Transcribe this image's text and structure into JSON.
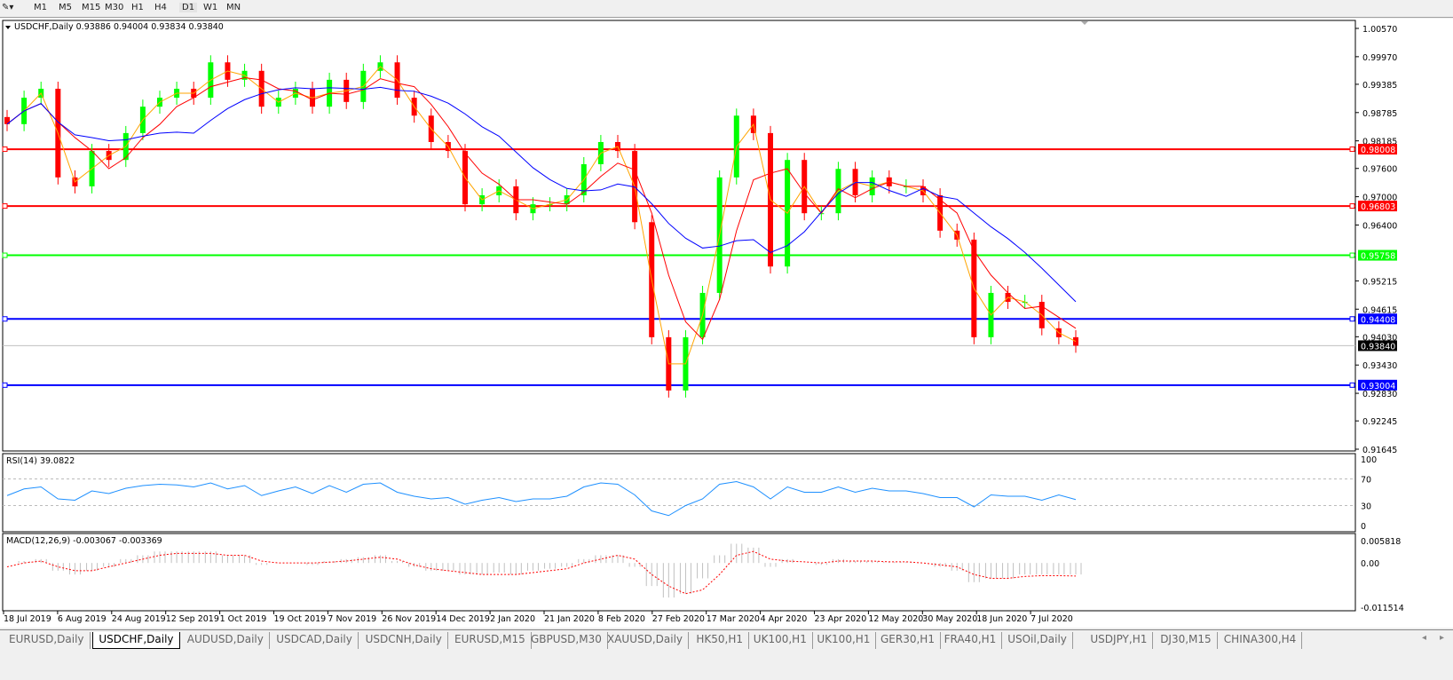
{
  "toolbar": {
    "timeframes": [
      "M1",
      "M5",
      "M15",
      "M30",
      "H1",
      "H4",
      "D1",
      "W1",
      "MN"
    ],
    "active": "D1"
  },
  "header": {
    "symbol": "USDCHF,Daily",
    "ohlc": "0.93886 0.94004 0.93834 0.93840"
  },
  "colors": {
    "bull": "#00ff00",
    "bear": "#ff0000",
    "ma_fast": "#ffa500",
    "ma_mid": "#ff0000",
    "ma_slow": "#0000ff",
    "rsi": "#1e90ff"
  },
  "chart_data": [
    {
      "type": "candlestick",
      "title": "USDCHF,Daily",
      "price_ticks": [
        "1.00570",
        "0.99970",
        "0.99385",
        "0.98785",
        "0.98185",
        "0.97600",
        "0.97000",
        "0.96400",
        "0.95215",
        "0.94615",
        "0.94030",
        "0.93430",
        "0.92830",
        "0.92245",
        "0.91645"
      ],
      "ylim": [
        0.91645,
        1.0057
      ],
      "x_ticks": [
        "18 Jul 2019",
        "6 Aug 2019",
        "24 Aug 2019",
        "12 Sep 2019",
        "1 Oct 2019",
        "19 Oct 2019",
        "7 Nov 2019",
        "26 Nov 2019",
        "14 Dec 2019",
        "2 Jan 2020",
        "21 Jan 2020",
        "8 Feb 2020",
        "27 Feb 2020",
        "17 Mar 2020",
        "4 Apr 2020",
        "23 Apr 2020",
        "12 May 2020",
        "30 May 2020",
        "18 Jun 2020",
        "7 Jul 2020"
      ],
      "closes": [
        0.9854,
        0.991,
        0.9929,
        0.9741,
        0.9722,
        0.9797,
        0.9778,
        0.9835,
        0.9891,
        0.991,
        0.9929,
        0.991,
        0.9985,
        0.9948,
        0.9967,
        0.9891,
        0.991,
        0.9929,
        0.9891,
        0.9948,
        0.9901,
        0.9967,
        0.9985,
        0.991,
        0.9872,
        0.9816,
        0.9797,
        0.9684,
        0.9703,
        0.9722,
        0.9665,
        0.9684,
        0.9684,
        0.9703,
        0.9769,
        0.9816,
        0.9797,
        0.9646,
        0.9402,
        0.9289,
        0.9402,
        0.9496,
        0.9741,
        0.9872,
        0.9835,
        0.9552,
        0.9778,
        0.9665,
        0.9665,
        0.9759,
        0.9703,
        0.9741,
        0.9722,
        0.9722,
        0.9703,
        0.9628,
        0.9609,
        0.9402,
        0.9496,
        0.9477,
        0.9477,
        0.9421,
        0.9402,
        0.9384
      ],
      "horizontal_lines": [
        {
          "price": "0.98008",
          "color": "#ff0000"
        },
        {
          "price": "0.96803",
          "color": "#ff0000"
        },
        {
          "price": "0.95758",
          "color": "#00ff00"
        },
        {
          "price": "0.94408",
          "color": "#0000ff"
        },
        {
          "price": "0.93004",
          "color": "#0000ff"
        }
      ],
      "current_price": "0.93840"
    },
    {
      "type": "line",
      "title": "RSI(14) 39.0822",
      "ylim": [
        0,
        100
      ],
      "y_ticks": [
        "100",
        "70",
        "30",
        "0"
      ],
      "levels": [
        70,
        30
      ],
      "values": [
        45,
        55,
        58,
        40,
        38,
        52,
        48,
        56,
        60,
        62,
        61,
        58,
        64,
        55,
        60,
        45,
        52,
        58,
        48,
        60,
        50,
        62,
        64,
        50,
        44,
        40,
        42,
        32,
        38,
        42,
        36,
        40,
        40,
        44,
        58,
        64,
        62,
        46,
        22,
        15,
        30,
        40,
        62,
        66,
        58,
        40,
        58,
        50,
        50,
        58,
        50,
        56,
        52,
        52,
        48,
        42,
        42,
        28,
        46,
        44,
        44,
        38,
        46,
        39
      ]
    },
    {
      "type": "bar+line",
      "title": "MACD(12,26,9) -0.003067 -0.003369",
      "ylim": [
        -0.011514,
        0.005818
      ],
      "y_ticks": [
        "0.005818",
        "0.00",
        "-0.011514"
      ],
      "histogram": [
        0,
        0.0005,
        0.001,
        -0.002,
        -0.003,
        -0.002,
        -0.001,
        0.001,
        0.002,
        0.003,
        0.003,
        0.003,
        0.003,
        0.002,
        0.002,
        -0.0005,
        0,
        0,
        -0.0005,
        0.0005,
        0.001,
        0.0015,
        0.002,
        0.0005,
        -0.001,
        -0.002,
        -0.002,
        -0.003,
        -0.003,
        -0.0025,
        -0.003,
        -0.002,
        -0.0015,
        -0.001,
        0.001,
        0.002,
        0.002,
        -0.001,
        -0.006,
        -0.009,
        -0.008,
        -0.004,
        0.002,
        0.005,
        0.004,
        -0.001,
        0.001,
        0,
        -0.0005,
        0.001,
        0.0005,
        0.0005,
        0.0003,
        0.0003,
        0,
        -0.001,
        -0.002,
        -0.005,
        -0.004,
        -0.004,
        -0.003,
        -0.003,
        -0.003,
        -0.003
      ],
      "signal": [
        -0.001,
        0,
        0.0005,
        -0.001,
        -0.002,
        -0.002,
        -0.001,
        0,
        0.001,
        0.002,
        0.0025,
        0.0025,
        0.0025,
        0.002,
        0.002,
        0.0005,
        0,
        0,
        0,
        0.0002,
        0.0005,
        0.001,
        0.0015,
        0.001,
        -0.0005,
        -0.0015,
        -0.002,
        -0.0025,
        -0.003,
        -0.003,
        -0.003,
        -0.0025,
        -0.002,
        -0.0015,
        0,
        0.001,
        0.002,
        0.001,
        -0.003,
        -0.006,
        -0.008,
        -0.007,
        -0.003,
        0.002,
        0.003,
        0.001,
        0.0005,
        0.0003,
        0,
        0.0005,
        0.0005,
        0.0005,
        0.0003,
        0.0003,
        0,
        -0.0005,
        -0.001,
        -0.003,
        -0.004,
        -0.004,
        -0.0035,
        -0.0033,
        -0.0033,
        -0.0034
      ]
    }
  ],
  "tabs": [
    "EURUSD,Daily",
    "USDCHF,Daily",
    "AUDUSD,Daily",
    "USDCAD,Daily",
    "USDCNH,Daily",
    "EURUSD,M15",
    "GBPUSD,M30",
    "XAUUSD,Daily",
    "HK50,H1",
    "UK100,H1",
    "UK100,H1",
    "GER30,H1",
    "FRA40,H1",
    "USOil,Daily",
    "USDJPY,H1",
    "DJ30,M15",
    "CHINA300,H4"
  ],
  "active_tab": "USDCHF,Daily"
}
